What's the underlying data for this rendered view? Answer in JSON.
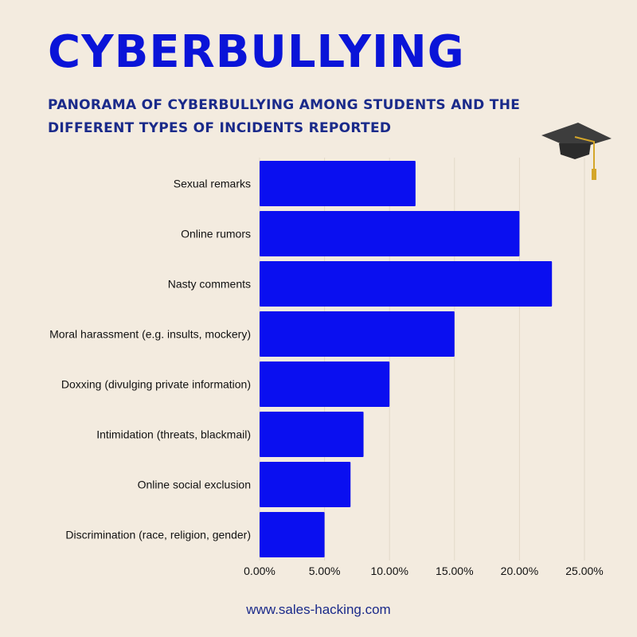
{
  "title": "CYBERBULLYING",
  "subtitle": "PANORAMA OF CYBERBULLYING AMONG STUDENTS AND THE DIFFERENT TYPES OF INCIDENTS REPORTED",
  "footer": "www.sales-hacking.com",
  "icon": "graduation-cap-icon",
  "colors": {
    "bar": "#0a0ff0",
    "title": "#0a14d8",
    "text": "#1a2a8a",
    "background": "#f3ebdf"
  },
  "chart_data": {
    "type": "bar",
    "orientation": "horizontal",
    "categories": [
      "Sexual remarks",
      "Online rumors",
      "Nasty comments",
      "Moral harassment (e.g. insults, mockery)",
      "Doxxing (divulging private information)",
      "Intimidation (threats, blackmail)",
      "Online social exclusion",
      "Discrimination (race, religion, gender)"
    ],
    "values": [
      0.12,
      0.2,
      0.225,
      0.15,
      0.1,
      0.08,
      0.07,
      0.05
    ],
    "xlim": [
      0,
      0.25
    ],
    "xticks": [
      "0.00%",
      "5.00%",
      "10.00%",
      "15.00%",
      "20.00%",
      "25.00%"
    ],
    "grid": "vertical"
  }
}
